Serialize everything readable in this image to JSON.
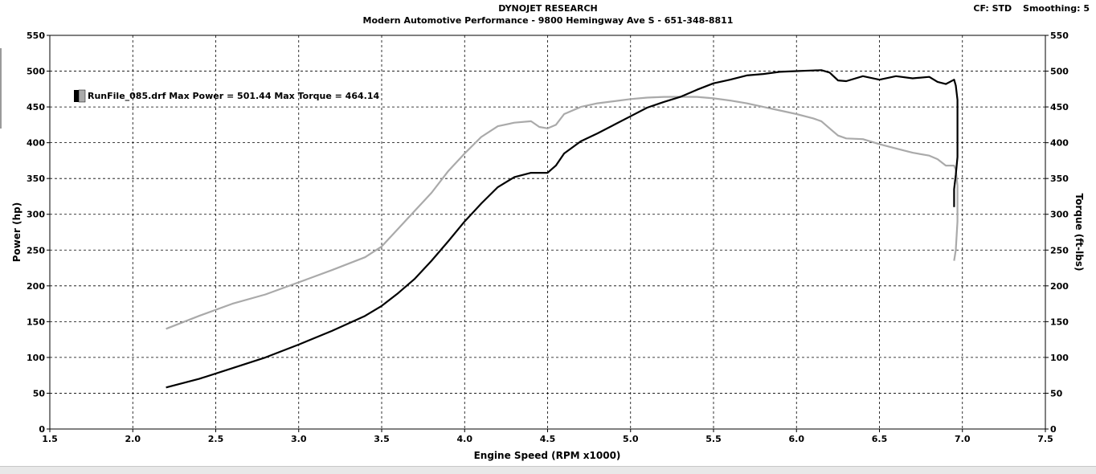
{
  "header": {
    "title": "DYNOJET RESEARCH",
    "subtitle": "Modern Automotive Performance - 9800 Hemingway Ave S - 651-348-8811",
    "correction": "CF: STD",
    "smoothing": "Smoothing: 5"
  },
  "chart_data": {
    "type": "line",
    "xlabel": "Engine Speed (RPM x1000)",
    "ylabel": "Power (hp)",
    "y2label": "Torque (ft-lbs)",
    "xlim": [
      1.5,
      7.5
    ],
    "ylim": [
      0,
      550
    ],
    "y2lim": [
      0,
      550
    ],
    "x_ticks": [
      "1.5",
      "2.0",
      "2.5",
      "3.0",
      "3.5",
      "4.0",
      "4.5",
      "5.0",
      "5.5",
      "6.0",
      "6.5",
      "7.0",
      "7.5"
    ],
    "y_ticks": [
      "0",
      "50",
      "100",
      "150",
      "200",
      "250",
      "300",
      "350",
      "400",
      "450",
      "500",
      "550"
    ],
    "grid": true,
    "legend": {
      "position": "top-left",
      "text": "RunFile_085.drf Max Power = 501.44 Max Torque = 464.14",
      "swatch_colors": [
        "#000000",
        "#aaaaaa"
      ]
    },
    "series": [
      {
        "color": "#000000",
        "axis": "left",
        "points": [
          [
            2.2,
            58
          ],
          [
            2.4,
            70
          ],
          [
            2.6,
            85
          ],
          [
            2.8,
            100
          ],
          [
            3.0,
            118
          ],
          [
            3.2,
            137
          ],
          [
            3.4,
            158
          ],
          [
            3.5,
            172
          ],
          [
            3.6,
            190
          ],
          [
            3.7,
            210
          ],
          [
            3.8,
            235
          ],
          [
            3.9,
            262
          ],
          [
            4.0,
            290
          ],
          [
            4.1,
            315
          ],
          [
            4.2,
            338
          ],
          [
            4.3,
            352
          ],
          [
            4.4,
            358
          ],
          [
            4.5,
            358
          ],
          [
            4.55,
            368
          ],
          [
            4.6,
            385
          ],
          [
            4.7,
            402
          ],
          [
            4.8,
            413
          ],
          [
            4.9,
            425
          ],
          [
            5.0,
            437
          ],
          [
            5.1,
            449
          ],
          [
            5.2,
            457
          ],
          [
            5.3,
            464
          ],
          [
            5.4,
            474
          ],
          [
            5.5,
            483
          ],
          [
            5.6,
            488
          ],
          [
            5.7,
            494
          ],
          [
            5.8,
            496
          ],
          [
            5.9,
            499
          ],
          [
            6.0,
            500
          ],
          [
            6.1,
            501
          ],
          [
            6.15,
            501.44
          ],
          [
            6.2,
            498
          ],
          [
            6.25,
            487
          ],
          [
            6.3,
            486
          ],
          [
            6.4,
            493
          ],
          [
            6.5,
            488
          ],
          [
            6.6,
            493
          ],
          [
            6.7,
            490
          ],
          [
            6.8,
            492
          ],
          [
            6.85,
            485
          ],
          [
            6.9,
            482
          ],
          [
            6.95,
            488
          ],
          [
            6.96,
            480
          ],
          [
            6.97,
            460
          ],
          [
            6.97,
            380
          ],
          [
            6.96,
            355
          ],
          [
            6.95,
            335
          ],
          [
            6.95,
            310
          ]
        ]
      },
      {
        "color": "#aaaaaa",
        "axis": "right",
        "points": [
          [
            2.2,
            140
          ],
          [
            2.4,
            158
          ],
          [
            2.6,
            175
          ],
          [
            2.8,
            188
          ],
          [
            3.0,
            205
          ],
          [
            3.2,
            222
          ],
          [
            3.4,
            240
          ],
          [
            3.5,
            255
          ],
          [
            3.6,
            280
          ],
          [
            3.7,
            305
          ],
          [
            3.8,
            330
          ],
          [
            3.9,
            360
          ],
          [
            4.0,
            385
          ],
          [
            4.1,
            408
          ],
          [
            4.2,
            423
          ],
          [
            4.3,
            428
          ],
          [
            4.4,
            430
          ],
          [
            4.45,
            422
          ],
          [
            4.5,
            420
          ],
          [
            4.55,
            425
          ],
          [
            4.6,
            440
          ],
          [
            4.7,
            450
          ],
          [
            4.8,
            455
          ],
          [
            4.9,
            458
          ],
          [
            5.0,
            461
          ],
          [
            5.1,
            463
          ],
          [
            5.2,
            464
          ],
          [
            5.3,
            464.14
          ],
          [
            5.4,
            464
          ],
          [
            5.5,
            462
          ],
          [
            5.6,
            459
          ],
          [
            5.7,
            455
          ],
          [
            5.8,
            450
          ],
          [
            5.9,
            445
          ],
          [
            6.0,
            440
          ],
          [
            6.1,
            434
          ],
          [
            6.15,
            430
          ],
          [
            6.2,
            420
          ],
          [
            6.25,
            410
          ],
          [
            6.3,
            406
          ],
          [
            6.4,
            405
          ],
          [
            6.5,
            398
          ],
          [
            6.6,
            392
          ],
          [
            6.7,
            386
          ],
          [
            6.8,
            382
          ],
          [
            6.85,
            377
          ],
          [
            6.9,
            368
          ],
          [
            6.95,
            368
          ],
          [
            6.96,
            362
          ],
          [
            6.97,
            340
          ],
          [
            6.97,
            290
          ],
          [
            6.96,
            250
          ],
          [
            6.95,
            235
          ]
        ]
      }
    ]
  }
}
